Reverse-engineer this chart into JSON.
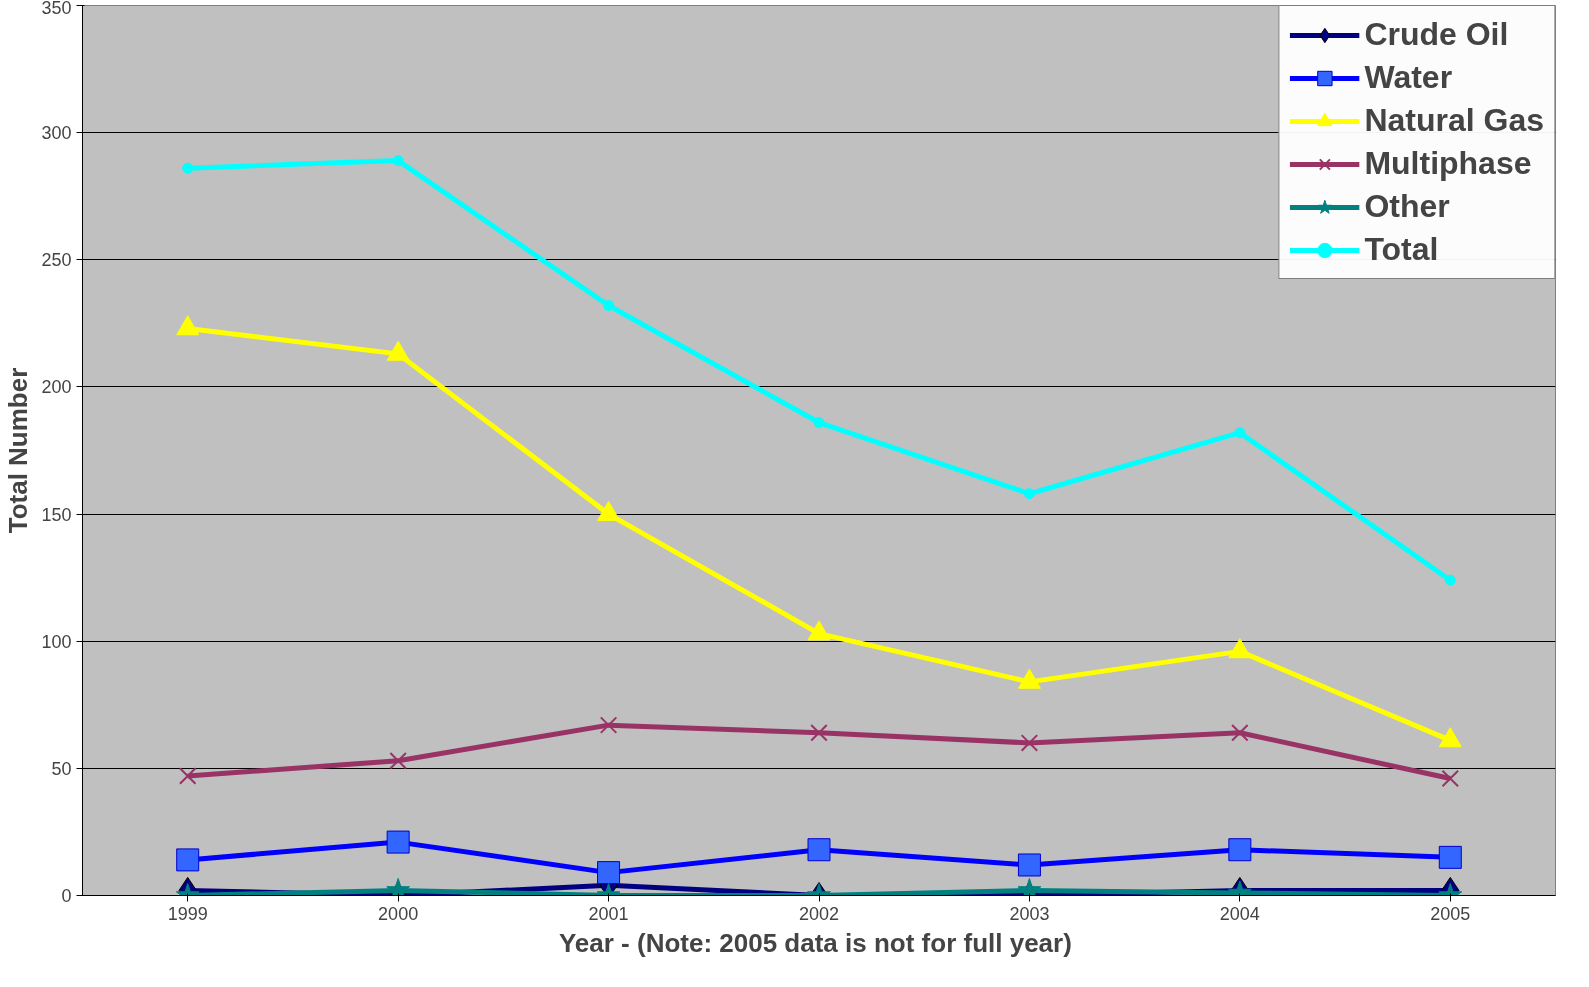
{
  "chart_data": {
    "type": "line",
    "xlabel": "Year - (Note:  2005 data is not for full year)",
    "ylabel": "Total Number",
    "categories": [
      "1999",
      "2000",
      "2001",
      "2002",
      "2003",
      "2004",
      "2005"
    ],
    "ylim": [
      0,
      350
    ],
    "yticks": [
      0,
      50,
      100,
      150,
      200,
      250,
      300,
      350
    ],
    "grid": "y",
    "legend": "top right",
    "series": [
      {
        "name": "Crude Oil",
        "color": "#000080",
        "marker": "diamond",
        "values": [
          2,
          0,
          4,
          0,
          0,
          2,
          2
        ]
      },
      {
        "name": "Water",
        "color": "#0000ff",
        "marker": "square",
        "values": [
          14,
          21,
          9,
          18,
          12,
          18,
          15
        ]
      },
      {
        "name": "Natural Gas",
        "color": "#ffff00",
        "marker": "triangle",
        "values": [
          223,
          213,
          150,
          103,
          84,
          96,
          61
        ]
      },
      {
        "name": "Multiphase",
        "color": "#993366",
        "marker": "cross",
        "values": [
          47,
          53,
          67,
          64,
          60,
          64,
          46
        ]
      },
      {
        "name": "Other",
        "color": "#008080",
        "marker": "star",
        "values": [
          0,
          2,
          0,
          0,
          2,
          1,
          0
        ]
      },
      {
        "name": "Total",
        "color": "#00ffff",
        "marker": "circle",
        "values": [
          286,
          289,
          232,
          186,
          158,
          182,
          124
        ]
      }
    ]
  }
}
